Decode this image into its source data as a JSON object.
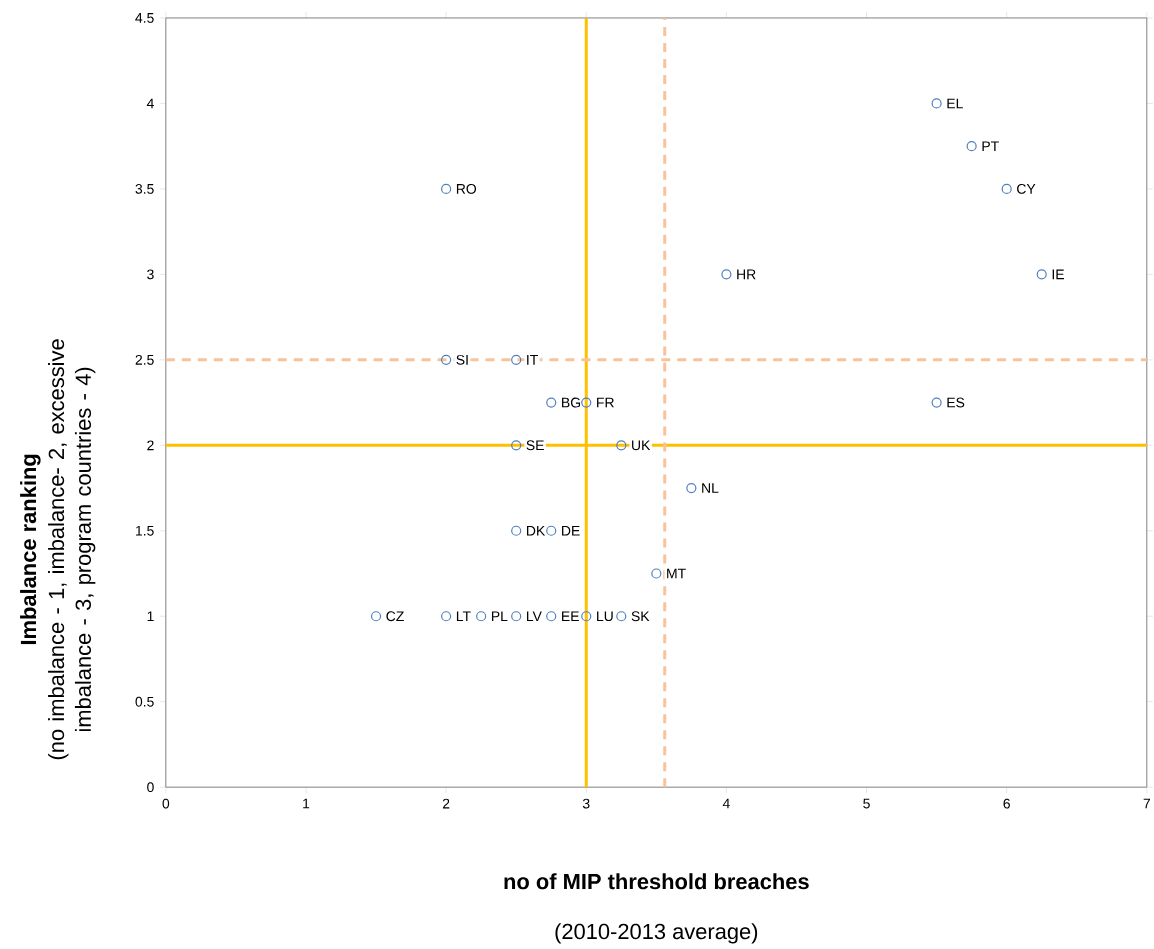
{
  "chart_data": {
    "type": "scatter",
    "xlabel": "no of MIP threshold breaches",
    "ylabel": "Imbalance ranking",
    "x": [
      2,
      5.5,
      5.75,
      6,
      6.25,
      4,
      2,
      2.5,
      2.75,
      3,
      5.5,
      2.5,
      3.25,
      3.75,
      2.5,
      2.75,
      3.5,
      1.5,
      2,
      2.25,
      2.5,
      2.75,
      3,
      3.25
    ],
    "series": [
      {
        "color": "#4f81bd",
        "values": [
          3.5,
          4,
          3.75,
          3.5,
          3,
          3,
          2.5,
          2.5,
          2.25,
          2.25,
          2.25,
          2,
          2,
          1.75,
          1.5,
          1.5,
          1.25,
          1,
          1,
          1,
          1,
          1,
          1,
          1
        ]
      }
    ],
    "marker": "circle",
    "xlim": [
      0,
      7
    ],
    "xticks": [
      0,
      1,
      2,
      3,
      4,
      5,
      6,
      7
    ],
    "ylim": [
      0,
      4.5
    ],
    "yticks": [
      0,
      0.5,
      1,
      1.5,
      2,
      2.5,
      3,
      3.5,
      4,
      4.5
    ],
    "grid": false,
    "ref_lines": [
      {
        "axis": "x",
        "value": 3,
        "color": "#ffc000",
        "line_style": "solid"
      },
      {
        "axis": "y",
        "value": 2,
        "color": "#ffc000",
        "line_style": "solid"
      },
      {
        "axis": "x",
        "value": 3.56,
        "color": "#f8c39a",
        "line_style": "dashed"
      },
      {
        "axis": "y",
        "value": 2.5,
        "color": "#f8c39a",
        "line_style": "dashed"
      }
    ],
    "annotations": [
      "(no imbalance - 1, imbalance- 2, excessive imbalance - 3, program countries - 4)",
      "(2010-2013 average)",
      {
        "text": "RO",
        "x": 2,
        "y": 3.5
      },
      {
        "text": "EL",
        "x": 5.5,
        "y": 4
      },
      {
        "text": "PT",
        "x": 5.75,
        "y": 3.75
      },
      {
        "text": "CY",
        "x": 6,
        "y": 3.5
      },
      {
        "text": "IE",
        "x": 6.25,
        "y": 3
      },
      {
        "text": "HR",
        "x": 4,
        "y": 3
      },
      {
        "text": "SI",
        "x": 2,
        "y": 2.5
      },
      {
        "text": "IT",
        "x": 2.5,
        "y": 2.5
      },
      {
        "text": "BG",
        "x": 2.75,
        "y": 2.25
      },
      {
        "text": "FR",
        "x": 3,
        "y": 2.25
      },
      {
        "text": "ES",
        "x": 5.5,
        "y": 2.25
      },
      {
        "text": "SE",
        "x": 2.5,
        "y": 2
      },
      {
        "text": "UK",
        "x": 3.25,
        "y": 2
      },
      {
        "text": "NL",
        "x": 3.75,
        "y": 1.75
      },
      {
        "text": "DK",
        "x": 2.5,
        "y": 1.5
      },
      {
        "text": "DE",
        "x": 2.75,
        "y": 1.5
      },
      {
        "text": "MT",
        "x": 3.5,
        "y": 1.25
      },
      {
        "text": "CZ",
        "x": 1.5,
        "y": 1
      },
      {
        "text": "LT",
        "x": 2,
        "y": 1
      },
      {
        "text": "PL",
        "x": 2.25,
        "y": 1
      },
      {
        "text": "LV",
        "x": 2.5,
        "y": 1
      },
      {
        "text": "EE",
        "x": 2.75,
        "y": 1
      },
      {
        "text": "LU",
        "x": 3,
        "y": 1
      },
      {
        "text": "SK",
        "x": 3.25,
        "y": 1
      }
    ]
  }
}
